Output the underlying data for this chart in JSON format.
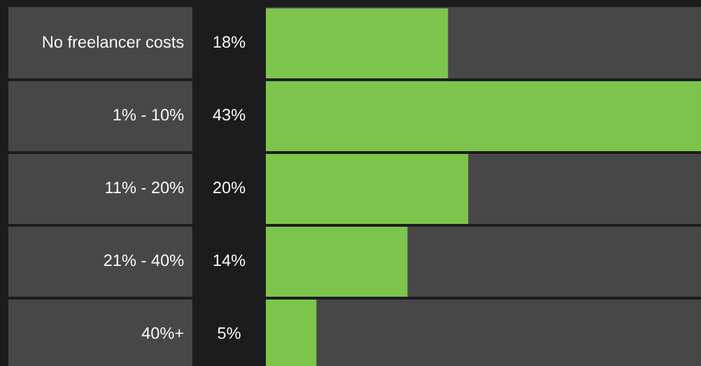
{
  "chart_data": {
    "type": "bar",
    "orientation": "horizontal",
    "categories": [
      "No freelancer costs",
      "1% - 10%",
      "11% - 20%",
      "21% - 40%",
      "40%+"
    ],
    "values": [
      18,
      43,
      20,
      14,
      5
    ],
    "value_labels": [
      "18%",
      "43%",
      "20%",
      "14%",
      "5%"
    ],
    "color": "#7dc44c",
    "xlim": [
      0,
      43
    ]
  }
}
